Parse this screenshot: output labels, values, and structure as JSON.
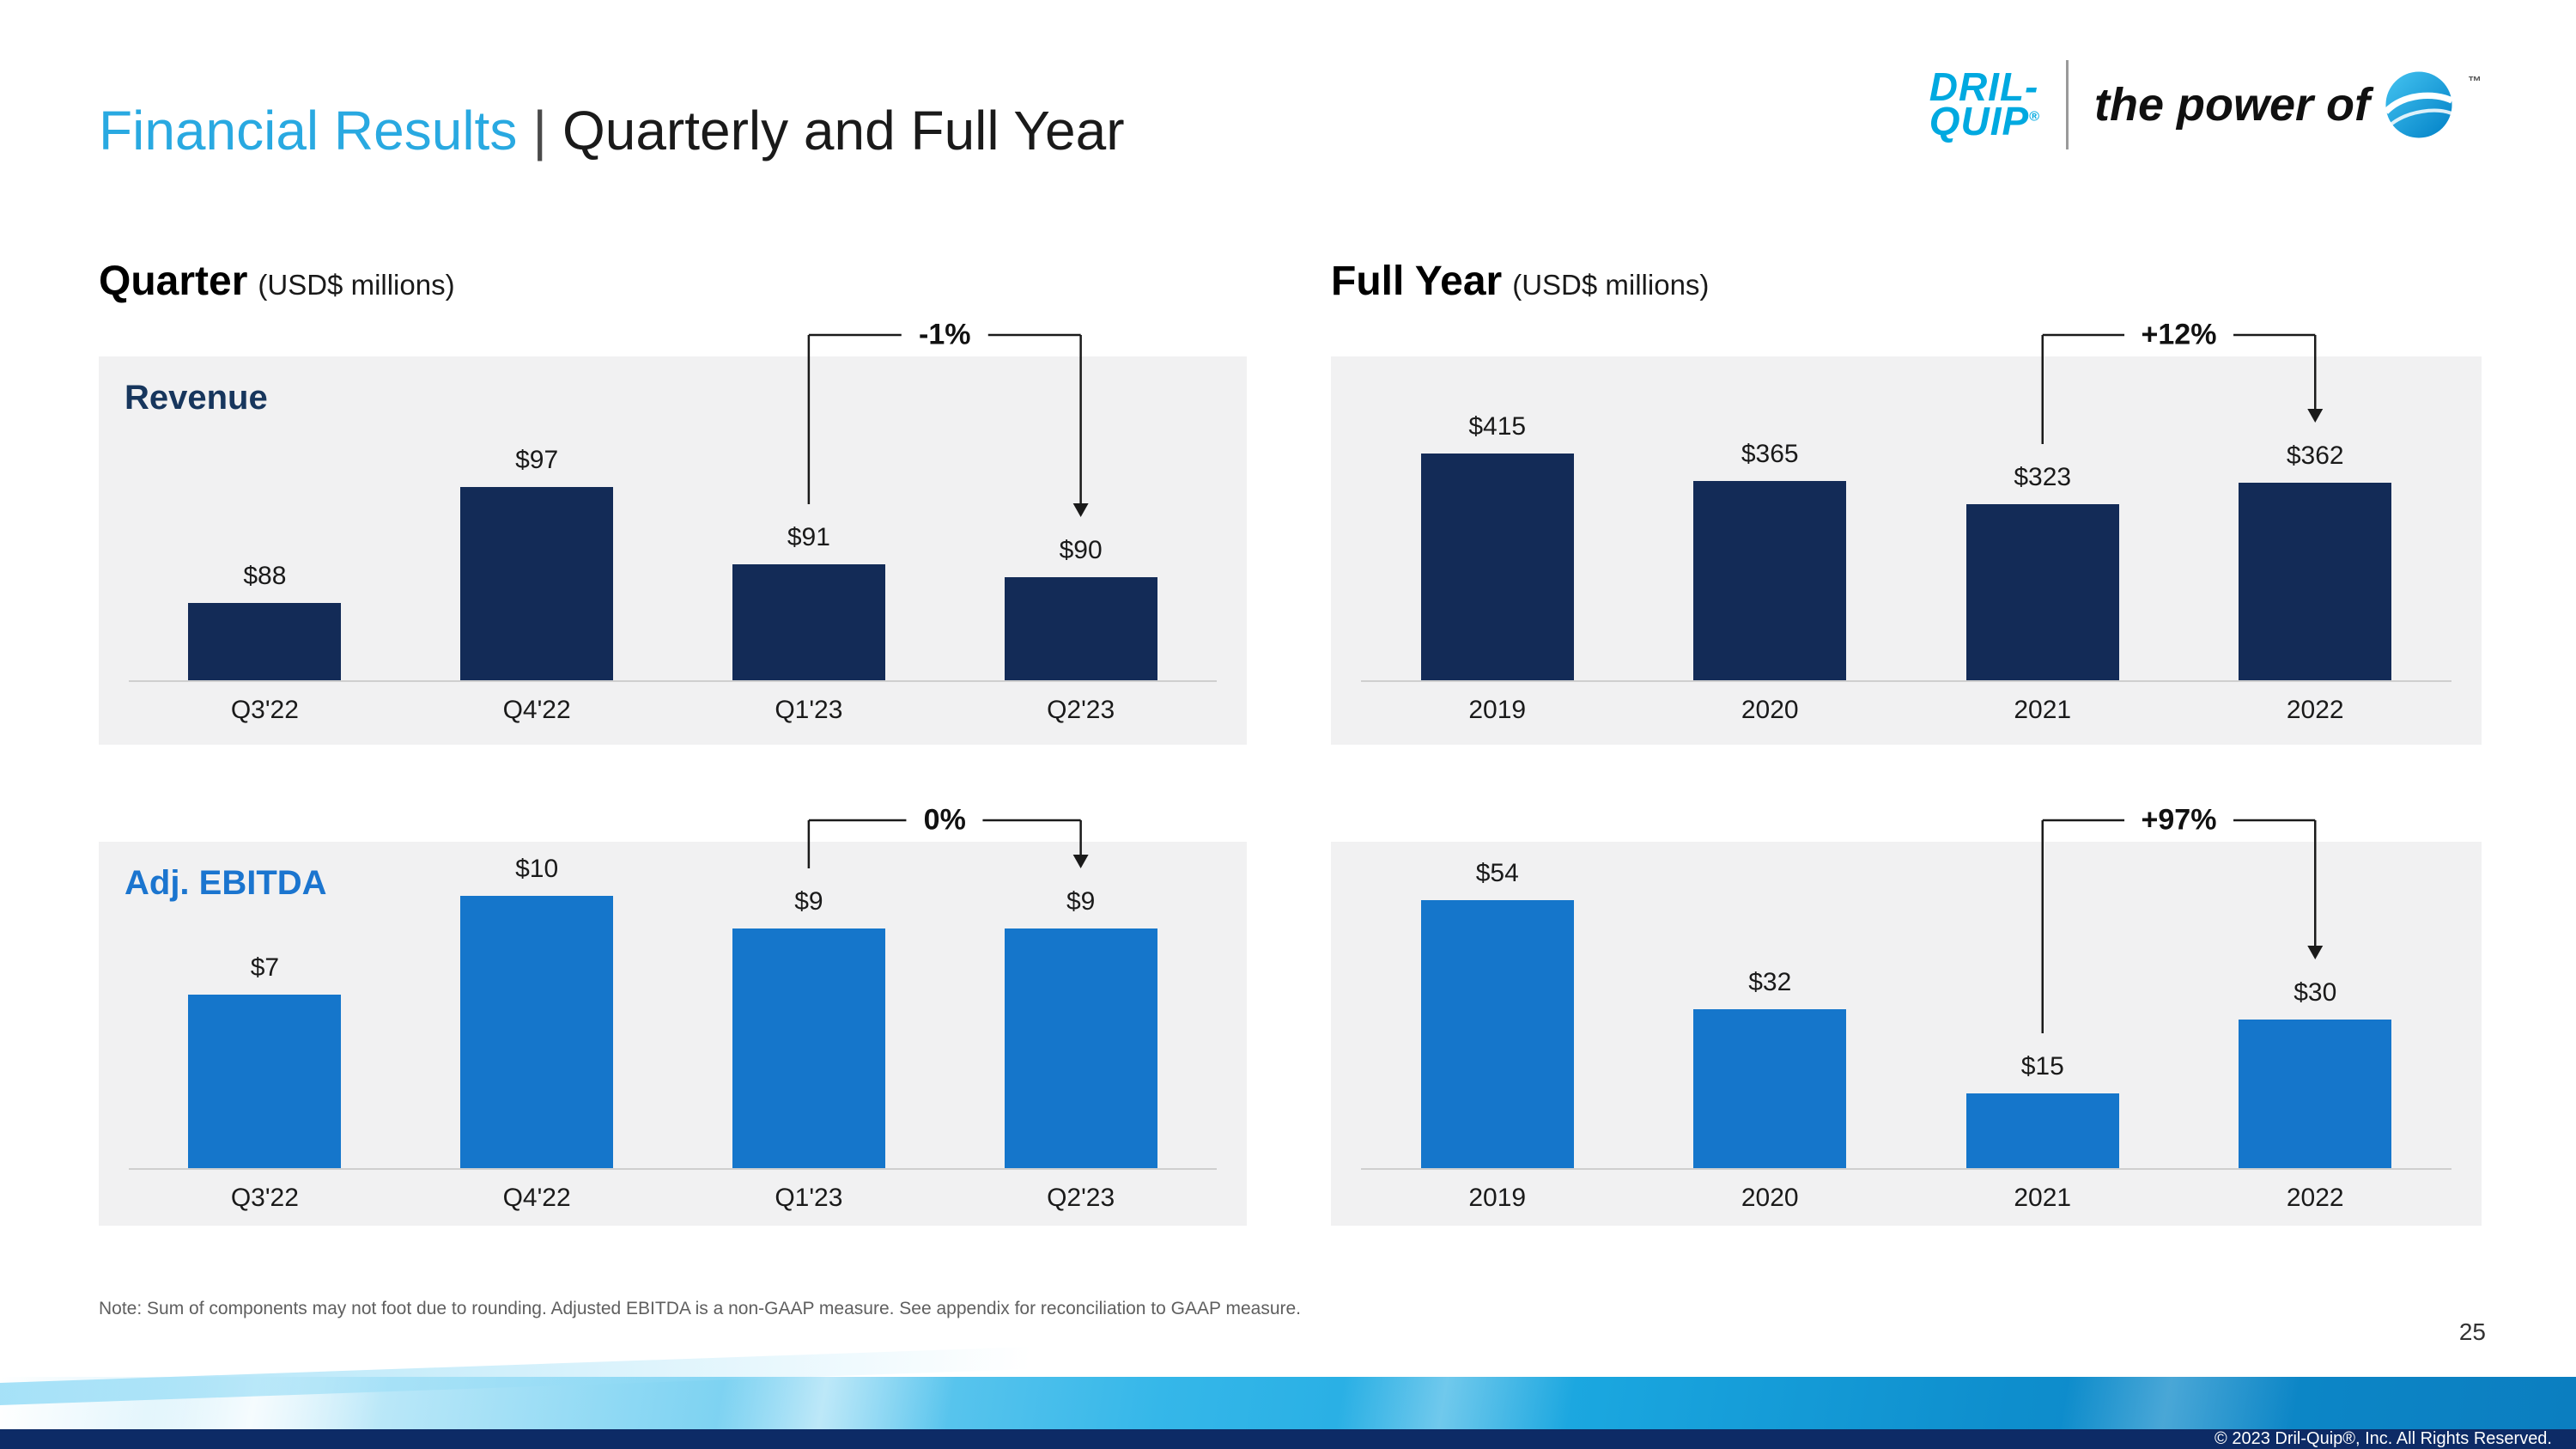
{
  "slide": {
    "title_accent": "Financial Results",
    "title_separator": "|",
    "title_rest": "Quarterly and Full Year",
    "page_number": "25",
    "note": "Note: Sum of components may not foot due to rounding. Adjusted EBITDA is a non-GAAP measure. See appendix for reconciliation to GAAP measure.",
    "footer_copyright": "© 2023 Dril-Quip®, Inc. All Rights Reserved."
  },
  "branding": {
    "logo_line1": "DRIL-",
    "logo_line2": "QUIP",
    "logo_reg": "®",
    "tagline": "the power of",
    "tagline_tm": "™"
  },
  "sections": {
    "quarter": {
      "title": "Quarter",
      "subtitle": "(USD$ millions)"
    },
    "full_year": {
      "title": "Full Year",
      "subtitle": "(USD$ millions)"
    }
  },
  "colors": {
    "accent_cyan": "#29A9E1",
    "logo_cyan": "#00A9E0",
    "navy_bar": "#132B57",
    "bright_blue_bar": "#1576CB",
    "panel_bg": "#F1F1F2",
    "footer_navy": "#0D2B66"
  },
  "chart_data": [
    {
      "id": "quarter-revenue",
      "type": "bar",
      "title": "Revenue",
      "section": "Quarter (USD$ millions)",
      "categories": [
        "Q3'22",
        "Q4'22",
        "Q1'23",
        "Q2'23"
      ],
      "values": [
        88,
        97,
        91,
        90
      ],
      "value_labels": [
        "$88",
        "$97",
        "$91",
        "$90"
      ],
      "ylim": [
        82,
        100
      ],
      "bar_color": "#132B57",
      "annotation": {
        "label": "-1%",
        "from_index": 2,
        "to_index": 3
      }
    },
    {
      "id": "quarter-adj-ebitda",
      "type": "bar",
      "title": "Adj. EBITDA",
      "section": "Quarter (USD$ millions)",
      "categories": [
        "Q3'22",
        "Q4'22",
        "Q1'23",
        "Q2'23"
      ],
      "values": [
        7,
        10,
        9,
        9
      ],
      "value_labels": [
        "$7",
        "$10",
        "$9",
        "$9"
      ],
      "ylim": [
        1.7,
        10.4
      ],
      "bar_color": "#1576CB",
      "annotation": {
        "label": "0%",
        "from_index": 2,
        "to_index": 3
      }
    },
    {
      "id": "full-year-revenue",
      "type": "bar",
      "title": "",
      "section": "Full Year (USD$ millions)",
      "categories": [
        "2019",
        "2020",
        "2021",
        "2022"
      ],
      "values": [
        415,
        365,
        323,
        362
      ],
      "value_labels": [
        "$415",
        "$365",
        "$323",
        "$362"
      ],
      "ylim": [
        0,
        450
      ],
      "bar_color": "#132B57",
      "annotation": {
        "label": "+12%",
        "from_index": 2,
        "to_index": 3
      }
    },
    {
      "id": "full-year-adj-ebitda",
      "type": "bar",
      "title": "",
      "section": "Full Year (USD$ millions)",
      "categories": [
        "2019",
        "2020",
        "2021",
        "2022"
      ],
      "values": [
        54,
        32,
        15,
        30
      ],
      "value_labels": [
        "$54",
        "$32",
        "$15",
        "$30"
      ],
      "ylim": [
        0,
        57
      ],
      "bar_color": "#1576CB",
      "annotation": {
        "label": "+97%",
        "from_index": 2,
        "to_index": 3
      }
    }
  ]
}
